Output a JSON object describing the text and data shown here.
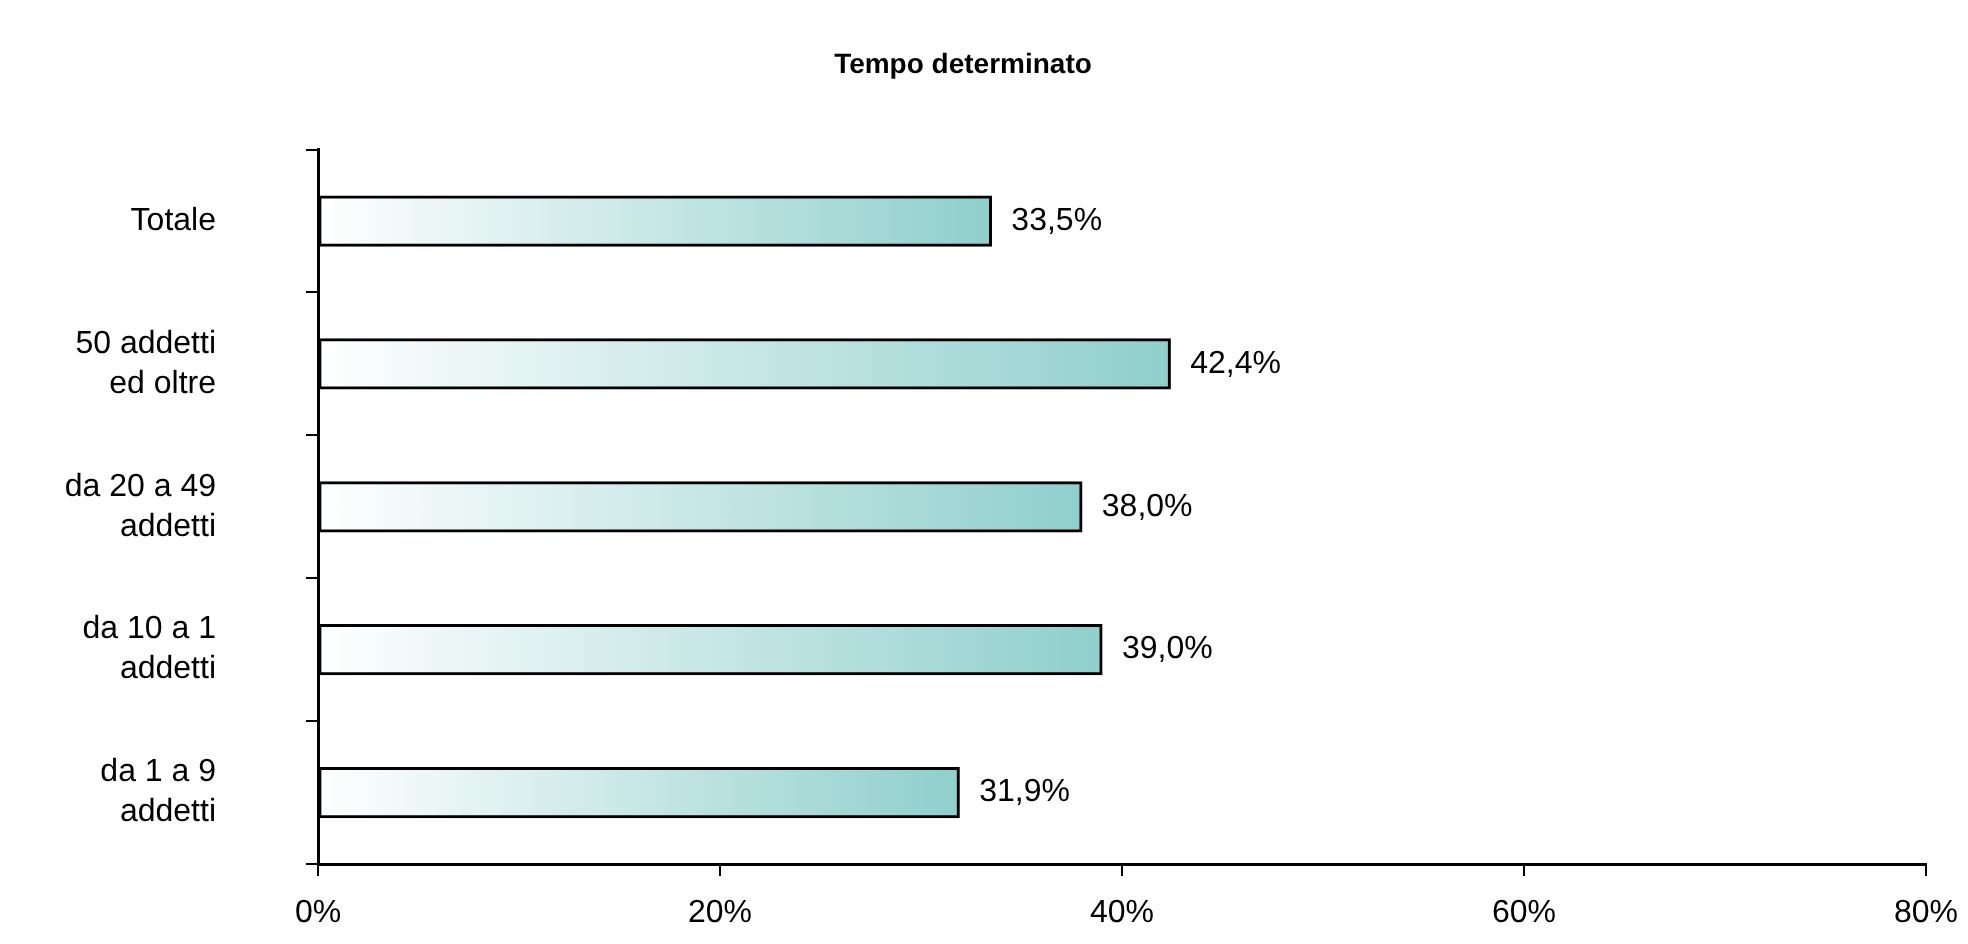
{
  "chart_data": {
    "type": "bar",
    "orientation": "horizontal",
    "title": "Tempo determinato",
    "categories": [
      "Totale",
      "50 addetti ed oltre",
      "da 20 a 49 addetti",
      "da 10 a 1 addetti",
      "da 1 a 9 addetti"
    ],
    "values": [
      33.5,
      42.4,
      38.0,
      39.0,
      31.9
    ],
    "color": "#8fcfcc",
    "value_labels": [
      "33,5%",
      "42,4%",
      "38,0%",
      "39,0%",
      "31,9%"
    ],
    "xlim": [
      0,
      80
    ],
    "xticks": [
      {
        "value": 0,
        "label": "0%"
      },
      {
        "value": 20,
        "label": "20%"
      },
      {
        "value": 40,
        "label": "40%"
      },
      {
        "value": 60,
        "label": "60%"
      },
      {
        "value": 80,
        "label": "80%"
      }
    ],
    "grid": false,
    "legend": false
  }
}
